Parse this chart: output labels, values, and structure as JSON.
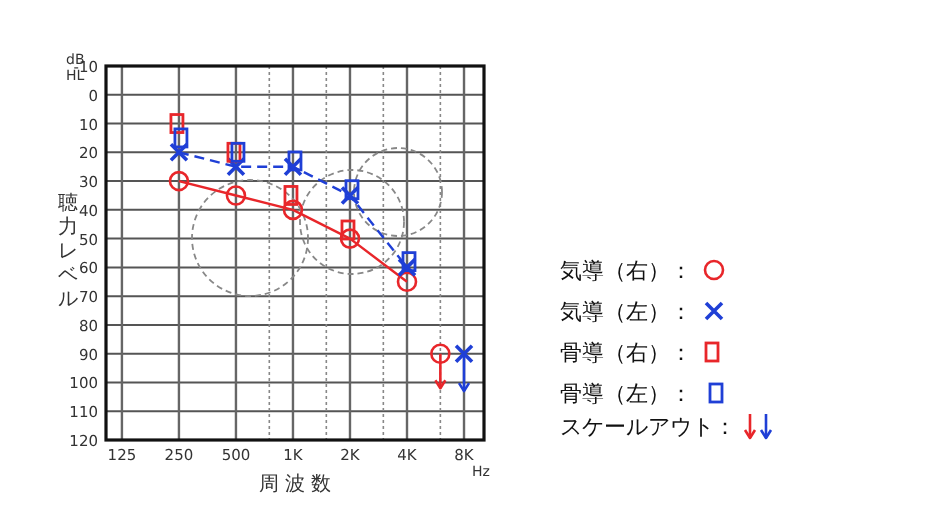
{
  "chart_data": {
    "type": "line",
    "xlabel": "周 波 数",
    "ylabel": "聴力レベル",
    "annotations": [
      "dB",
      "HL",
      "Hz",
      "スケールアウト："
    ],
    "log": "x",
    "xlim": [
      103,
      10200
    ],
    "ylim": [
      120,
      -10
    ],
    "xticks": [
      125,
      250,
      500,
      {
        "value": 750,
        "label": null
      },
      {
        "value": 1000,
        "label": "1K"
      },
      {
        "value": 1500,
        "label": null
      },
      {
        "value": 2000,
        "label": "2K"
      },
      {
        "value": 3000,
        "label": null
      },
      {
        "value": 4000,
        "label": "4K"
      },
      {
        "value": 6000,
        "label": null
      },
      {
        "value": 8000,
        "label": "8K"
      }
    ],
    "yticks": [
      -10,
      0,
      10,
      20,
      30,
      40,
      50,
      60,
      70,
      80,
      90,
      100,
      110,
      120
    ],
    "grid": true,
    "legend": "right",
    "series": [
      {
        "name": "気導（右）：",
        "type": "line",
        "color": "#e8262a",
        "marker": "circle",
        "line_style": "solid",
        "x": [
          250,
          500,
          1000,
          2000,
          4000
        ],
        "values": [
          30,
          35,
          40,
          50,
          65
        ]
      },
      {
        "name": "気導（左）：",
        "type": "line",
        "color": "#1f3fd6",
        "marker": "cross",
        "line_style": "dashed",
        "x": [
          250,
          500,
          1000,
          2000,
          4000
        ],
        "values": [
          20,
          25,
          25,
          35,
          60
        ]
      },
      {
        "name": "骨導（右）：",
        "type": "scatter",
        "color": "#e8262a",
        "marker": "square",
        "x": [
          250,
          500,
          1000,
          2000
        ],
        "values": [
          10,
          20,
          35,
          47
        ]
      },
      {
        "name": "骨導（左）：",
        "type": "scatter",
        "color": "#1f3fd6",
        "marker": "square",
        "x": [
          250,
          500,
          1000,
          2000,
          4000
        ],
        "values": [
          15,
          20,
          23,
          33,
          58
        ]
      },
      {
        "type": "scatter",
        "color": "#e8262a",
        "marker": "circle",
        "x": [
          6000
        ],
        "values": [
          90
        ],
        "errors": [
          [
            90,
            102
          ]
        ]
      },
      {
        "type": "scatter",
        "color": "#1f3fd6",
        "marker": "cross",
        "x": [
          8000
        ],
        "values": [
          90
        ],
        "errors": [
          [
            90,
            103
          ]
        ]
      }
    ]
  }
}
